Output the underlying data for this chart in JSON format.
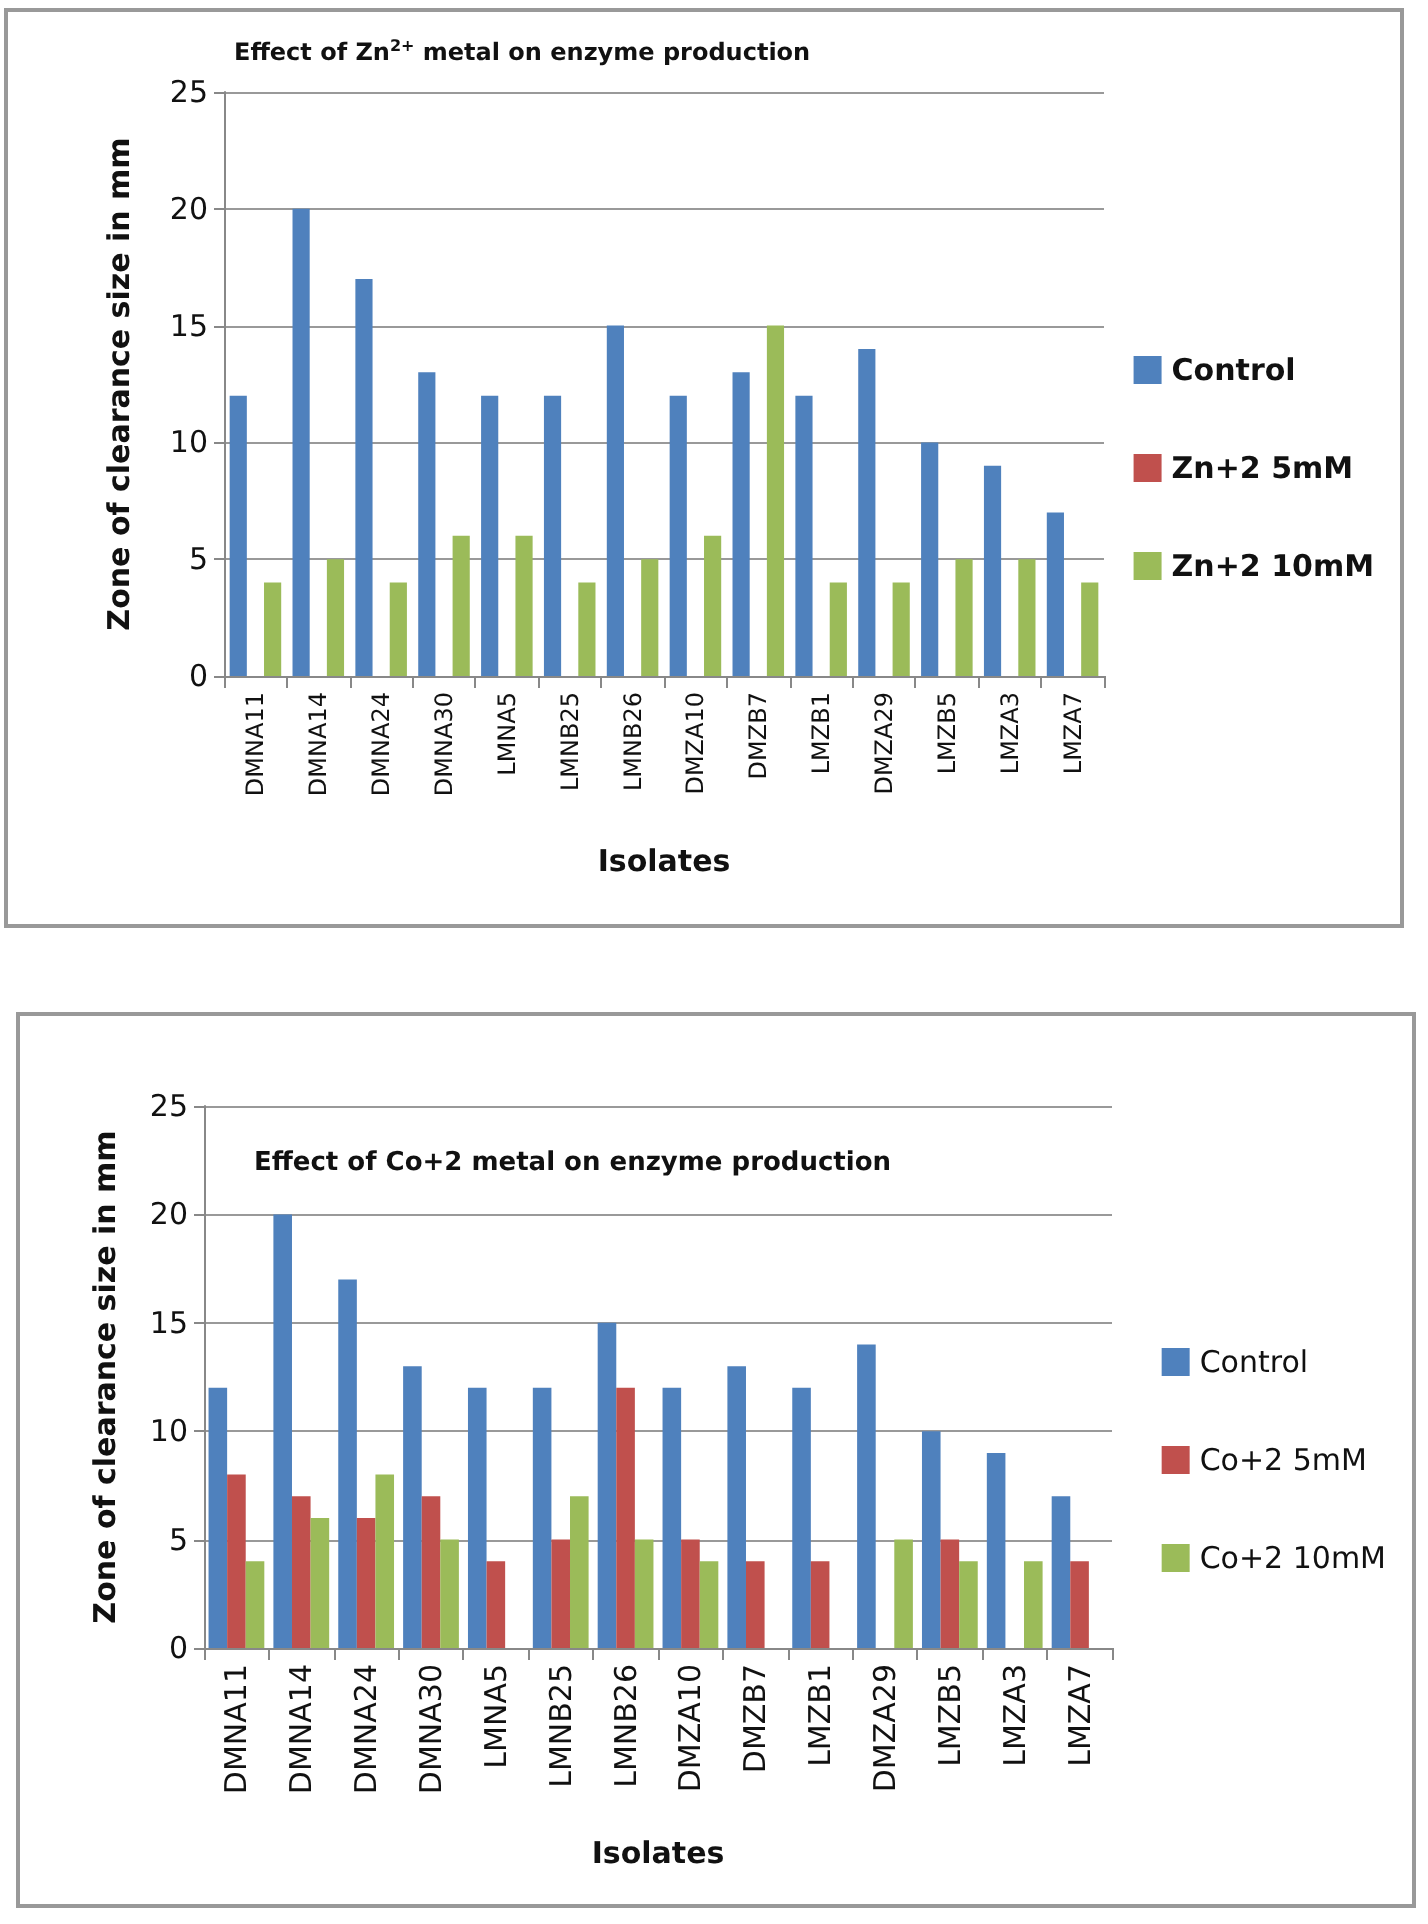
{
  "chart_data": [
    {
      "type": "bar",
      "title": "Effect of Zn$^{2+}$ metal on enzyme production",
      "xlabel": "Isolates",
      "ylabel": "Zone of clearance size in mm",
      "categories": [
        "DMNA11",
        "DMNA14",
        "DMNA24",
        "DMNA30",
        "LMNA5",
        "LMNB25",
        "LMNB26",
        "DMZA10",
        "DMZB7",
        "LMZB1",
        "DMZA29",
        "LMZB5",
        "LMZA3",
        "LMZA7"
      ],
      "series": [
        {
          "name": "Control",
          "color": "#4f81bd",
          "values": [
            12,
            20,
            17,
            13,
            12,
            12,
            15,
            12,
            13,
            12,
            14,
            10,
            9,
            7
          ]
        },
        {
          "name": "Zn+2 5mM",
          "color": "#c0504d",
          "values": [
            null,
            null,
            null,
            null,
            null,
            null,
            null,
            null,
            null,
            null,
            null,
            null,
            null,
            null
          ]
        },
        {
          "name": "Zn+2 10mM",
          "color": "#9bbb59",
          "values": [
            4,
            5,
            4,
            6,
            6,
            4,
            5,
            6,
            15,
            4,
            4,
            5,
            5,
            4
          ]
        }
      ],
      "ylim": [
        0,
        25
      ],
      "yticks": [
        0,
        5,
        10,
        15,
        20,
        25
      ],
      "grid": "y",
      "legend": "right"
    },
    {
      "type": "bar",
      "title": "Effect of Co+2 metal on enzyme production",
      "xlabel": "Isolates",
      "ylabel": "Zone of clearance size in mm",
      "categories": [
        "DMNA11",
        "DMNA14",
        "DMNA24",
        "DMNA30",
        "LMNA5",
        "LMNB25",
        "LMNB26",
        "DMZA10",
        "DMZB7",
        "LMZB1",
        "DMZA29",
        "LMZB5",
        "LMZA3",
        "LMZA7"
      ],
      "series": [
        {
          "name": "Control",
          "color": "#4f81bd",
          "values": [
            12,
            20,
            17,
            13,
            12,
            12,
            15,
            12,
            13,
            12,
            14,
            10,
            9,
            7
          ]
        },
        {
          "name": "Co+2 5mM",
          "color": "#c0504d",
          "values": [
            8,
            7,
            6,
            7,
            4,
            5,
            12,
            5,
            4,
            4,
            null,
            5,
            null,
            4
          ]
        },
        {
          "name": "Co+2 10mM",
          "color": "#9bbb59",
          "values": [
            4,
            6,
            8,
            5,
            null,
            7,
            5,
            4,
            null,
            null,
            5,
            4,
            4,
            null
          ]
        }
      ],
      "ylim": [
        0,
        25
      ],
      "yticks": [
        0,
        5,
        10,
        15,
        20,
        25
      ],
      "grid": "y",
      "legend": "right"
    }
  ]
}
